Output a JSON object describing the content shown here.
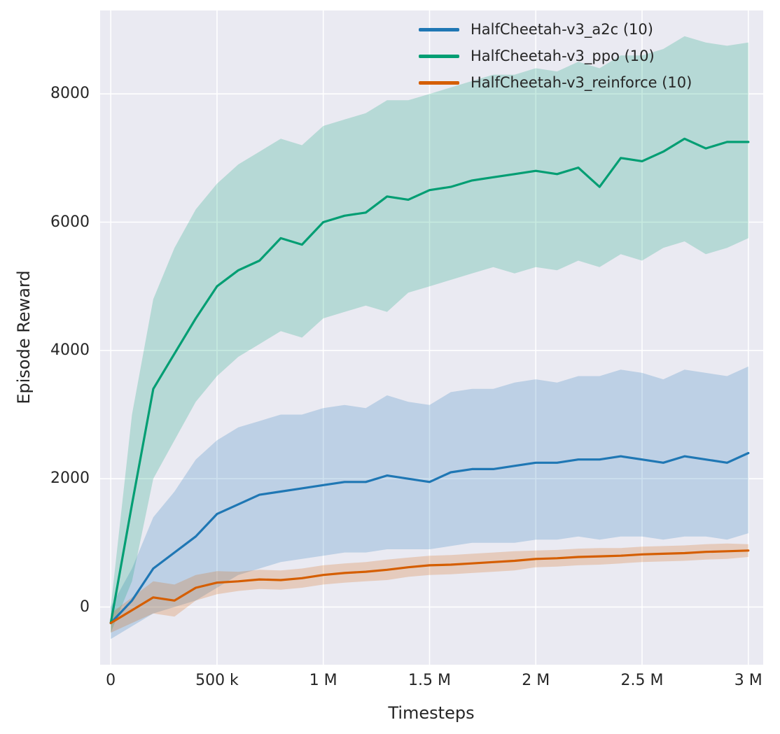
{
  "chart_data": {
    "type": "line",
    "title": "",
    "xlabel": "Timesteps",
    "ylabel": "Episode Reward",
    "xlim": [
      -0.05,
      3.07
    ],
    "ylim": [
      -900,
      9300
    ],
    "grid": true,
    "legend_position": "upper right inside",
    "background": "#eaeaf2",
    "grid_color": "#ffffff",
    "band_opacity": 0.22,
    "x_unit": "timesteps (millions)",
    "x_ticks": [
      {
        "v": 0.0,
        "label": "0"
      },
      {
        "v": 0.5,
        "label": "500 k"
      },
      {
        "v": 1.0,
        "label": "1 M"
      },
      {
        "v": 1.5,
        "label": "1.5 M"
      },
      {
        "v": 2.0,
        "label": "2 M"
      },
      {
        "v": 2.5,
        "label": "2.5 M"
      },
      {
        "v": 3.0,
        "label": "3 M"
      }
    ],
    "y_ticks": [
      {
        "v": 0,
        "label": "0"
      },
      {
        "v": 2000,
        "label": "2000"
      },
      {
        "v": 4000,
        "label": "4000"
      },
      {
        "v": 6000,
        "label": "6000"
      },
      {
        "v": 8000,
        "label": "8000"
      }
    ],
    "x": [
      0,
      0.1,
      0.2,
      0.3,
      0.4,
      0.5,
      0.6,
      0.7,
      0.8,
      0.9,
      1.0,
      1.1,
      1.2,
      1.3,
      1.4,
      1.5,
      1.6,
      1.7,
      1.8,
      1.9,
      2.0,
      2.1,
      2.2,
      2.3,
      2.4,
      2.5,
      2.6,
      2.7,
      2.8,
      2.9,
      3.0
    ],
    "series": [
      {
        "name": "HalfCheetah-v3_a2c (10)",
        "color": "#1f77b4",
        "mean": [
          -250,
          100,
          600,
          850,
          1100,
          1450,
          1600,
          1750,
          1800,
          1850,
          1900,
          1950,
          1950,
          2050,
          2000,
          1950,
          2100,
          2150,
          2150,
          2200,
          2250,
          2250,
          2300,
          2300,
          2350,
          2300,
          2250,
          2350,
          2300,
          2250,
          2400
        ],
        "lo": [
          -500,
          -300,
          -100,
          0,
          100,
          300,
          500,
          600,
          700,
          750,
          800,
          850,
          850,
          900,
          900,
          900,
          950,
          1000,
          1000,
          1000,
          1050,
          1050,
          1100,
          1050,
          1100,
          1100,
          1050,
          1100,
          1100,
          1050,
          1150
        ],
        "hi": [
          0,
          600,
          1400,
          1800,
          2300,
          2600,
          2800,
          2900,
          3000,
          3000,
          3100,
          3150,
          3100,
          3300,
          3200,
          3150,
          3350,
          3400,
          3400,
          3500,
          3550,
          3500,
          3600,
          3600,
          3700,
          3650,
          3550,
          3700,
          3650,
          3600,
          3750
        ]
      },
      {
        "name": "HalfCheetah-v3_ppo (10)",
        "color": "#029e73",
        "mean": [
          -250,
          1600,
          3400,
          3950,
          4500,
          5000,
          5250,
          5400,
          5750,
          5650,
          6000,
          6100,
          6150,
          6400,
          6350,
          6500,
          6550,
          6650,
          6700,
          6750,
          6800,
          6750,
          6850,
          6550,
          7000,
          6950,
          7100,
          7300,
          7150,
          7250,
          7250
        ],
        "lo": [
          -400,
          400,
          2000,
          2600,
          3200,
          3600,
          3900,
          4100,
          4300,
          4200,
          4500,
          4600,
          4700,
          4600,
          4900,
          5000,
          5100,
          5200,
          5300,
          5200,
          5300,
          5250,
          5400,
          5300,
          5500,
          5400,
          5600,
          5700,
          5500,
          5600,
          5750
        ],
        "hi": [
          0,
          3000,
          4800,
          5600,
          6200,
          6600,
          6900,
          7100,
          7300,
          7200,
          7500,
          7600,
          7700,
          7900,
          7900,
          8000,
          8100,
          8200,
          8300,
          8300,
          8400,
          8350,
          8500,
          8400,
          8600,
          8600,
          8700,
          8900,
          8800,
          8750,
          8800
        ]
      },
      {
        "name": "HalfCheetah-v3_reinforce (10)",
        "color": "#d55e00",
        "mean": [
          -250,
          -50,
          150,
          100,
          300,
          380,
          400,
          430,
          420,
          450,
          500,
          530,
          550,
          580,
          620,
          650,
          660,
          680,
          700,
          720,
          750,
          760,
          780,
          790,
          800,
          820,
          830,
          840,
          860,
          870,
          880
        ],
        "lo": [
          -400,
          -250,
          -100,
          -150,
          100,
          200,
          250,
          280,
          270,
          300,
          350,
          380,
          400,
          420,
          470,
          500,
          510,
          530,
          550,
          570,
          620,
          630,
          650,
          660,
          680,
          700,
          710,
          720,
          740,
          750,
          780
        ],
        "hi": [
          -100,
          150,
          400,
          350,
          500,
          560,
          550,
          580,
          570,
          600,
          650,
          680,
          700,
          740,
          770,
          800,
          810,
          830,
          850,
          870,
          880,
          890,
          910,
          920,
          920,
          940,
          950,
          960,
          980,
          990,
          980
        ]
      }
    ]
  }
}
